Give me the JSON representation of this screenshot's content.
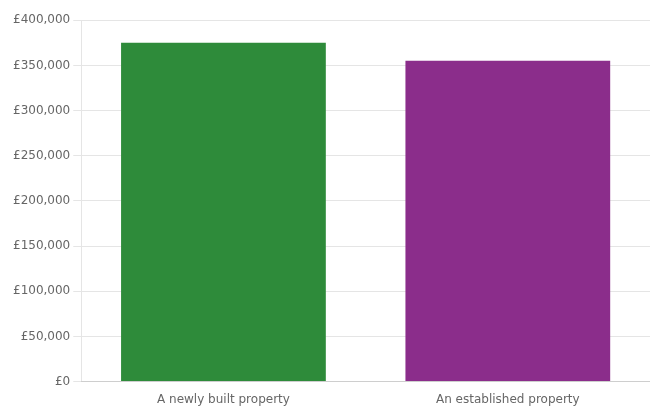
{
  "chart_data": {
    "type": "bar",
    "categories": [
      "A newly built property",
      "An established property"
    ],
    "values": [
      375000,
      355000
    ],
    "colors": [
      "#2e8b3a",
      "#8b2d8b"
    ],
    "ylim": [
      0,
      400000
    ],
    "yticks": [
      {
        "value": 0,
        "label": "£0"
      },
      {
        "value": 50000,
        "label": "£50,000"
      },
      {
        "value": 100000,
        "label": "£100,000"
      },
      {
        "value": 150000,
        "label": "£150,000"
      },
      {
        "value": 200000,
        "label": "£200,000"
      },
      {
        "value": 250000,
        "label": "£250,000"
      },
      {
        "value": 300000,
        "label": "£300,000"
      },
      {
        "value": 350000,
        "label": "£350,000"
      },
      {
        "value": 400000,
        "label": "£400,000"
      }
    ],
    "grid": true
  }
}
